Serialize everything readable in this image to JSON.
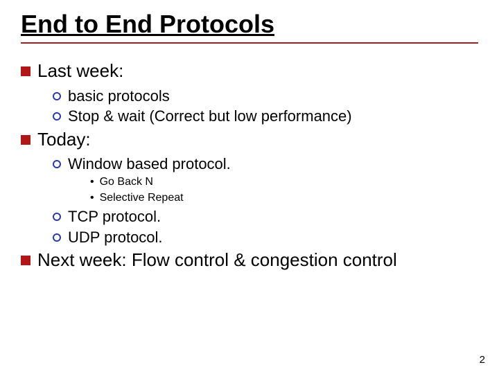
{
  "colors": {
    "text": "#000000",
    "title_rule": "#a02020",
    "square_fill": "#b01818",
    "circle_stroke": "#2a3aa8",
    "background": "#ffffff"
  },
  "title": "End to End Protocols",
  "items": {
    "last_week": {
      "label": "Last week:",
      "sub": {
        "a": "basic protocols",
        "b": "Stop & wait (Correct but low performance)"
      }
    },
    "today": {
      "label": "Today:",
      "sub": {
        "a": "Window based protocol.",
        "a_sub": {
          "i": "Go Back N",
          "ii": "Selective Repeat"
        },
        "b": "TCP protocol.",
        "c": "UDP protocol."
      }
    },
    "next_week": {
      "label": "Next week: Flow control & congestion control"
    }
  },
  "page_number": "2"
}
